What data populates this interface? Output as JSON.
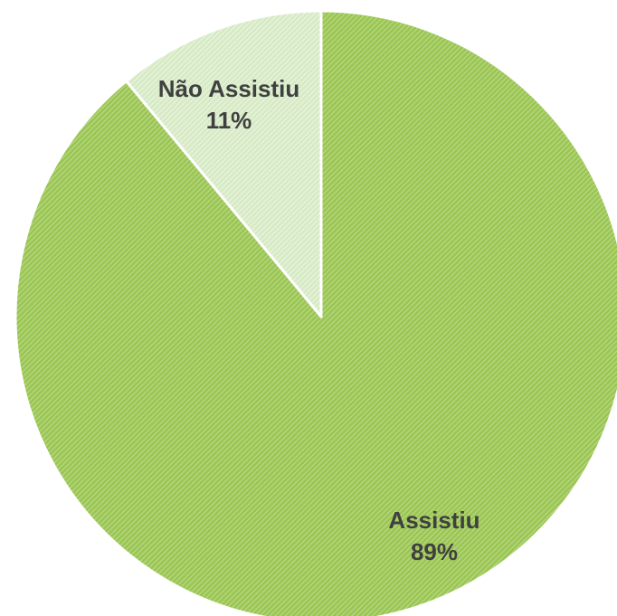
{
  "chart_data": {
    "type": "pie",
    "title": "",
    "categories": [
      "Assistiu",
      "Não Assistiu"
    ],
    "values": [
      89,
      11
    ],
    "value_labels": [
      "89%",
      "11%"
    ],
    "colors": [
      "#9bc653",
      "#d9eccb"
    ],
    "hatch_colors": [
      "#b9da8b",
      "#eef7e7"
    ],
    "start_angle_deg": 0,
    "direction": "clockwise",
    "legend": "none"
  }
}
